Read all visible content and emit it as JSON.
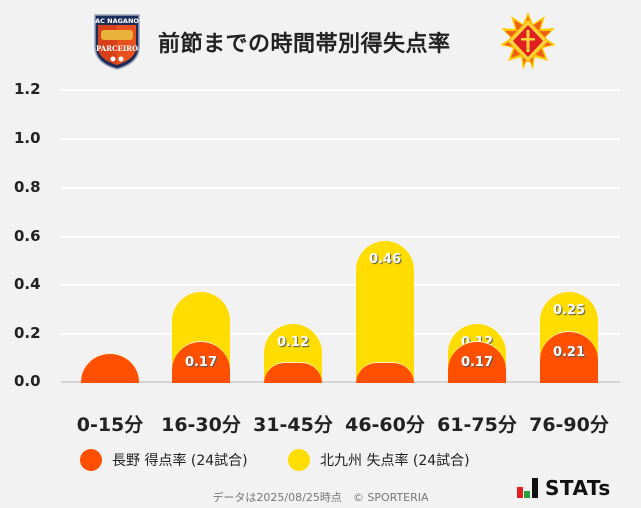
{
  "header": {
    "title": "前節までの時間帯別得失点率",
    "left_logo": "AC NAGANO PARCEIRO",
    "left_logo_top": "AC NAGANO",
    "left_logo_bottom": "PARCEIRO"
  },
  "colors": {
    "nagano": "#ff4f00",
    "kitakyushu": "#ffdd00",
    "background": "#f2f2f2"
  },
  "chart_data": {
    "type": "bar",
    "title": "前節までの時間帯別得失点率",
    "categories": [
      "0-15分",
      "16-30分",
      "31-45分",
      "46-60分",
      "61-75分",
      "76-90分"
    ],
    "series": [
      {
        "name": "長野 得点率 (24試合)",
        "color": "#ff4f00",
        "values": [
          0.08,
          0.17,
          0.04,
          0.04,
          0.17,
          0.21
        ],
        "labels": [
          "",
          "0.17",
          "",
          "",
          "0.17",
          "0.21"
        ]
      },
      {
        "name": "北九州 失点率 (24試合)",
        "color": "#ffdd00",
        "values": [
          0.0,
          0.25,
          0.12,
          0.46,
          0.12,
          0.25
        ],
        "labels": [
          "",
          "",
          "0.12",
          "0.46",
          "0.12",
          "0.25"
        ]
      }
    ],
    "xlabel": "",
    "ylabel": "",
    "ylim": [
      0,
      1.2
    ],
    "yticks": [
      "1.2",
      "1.0",
      "0.8",
      "0.6",
      "0.4",
      "0.2",
      "0.0"
    ],
    "grid": true,
    "legend_position": "bottom",
    "overlapping_bars": true
  },
  "legend": {
    "items": [
      {
        "label": "長野 得点率 (24試合)",
        "color": "#ff4f00"
      },
      {
        "label": "北九州 失点率 (24試合)",
        "color": "#ffdd00"
      }
    ]
  },
  "footer": {
    "note": "データは2025/08/25時点　© SPORTERIA",
    "brand": "STATs"
  }
}
